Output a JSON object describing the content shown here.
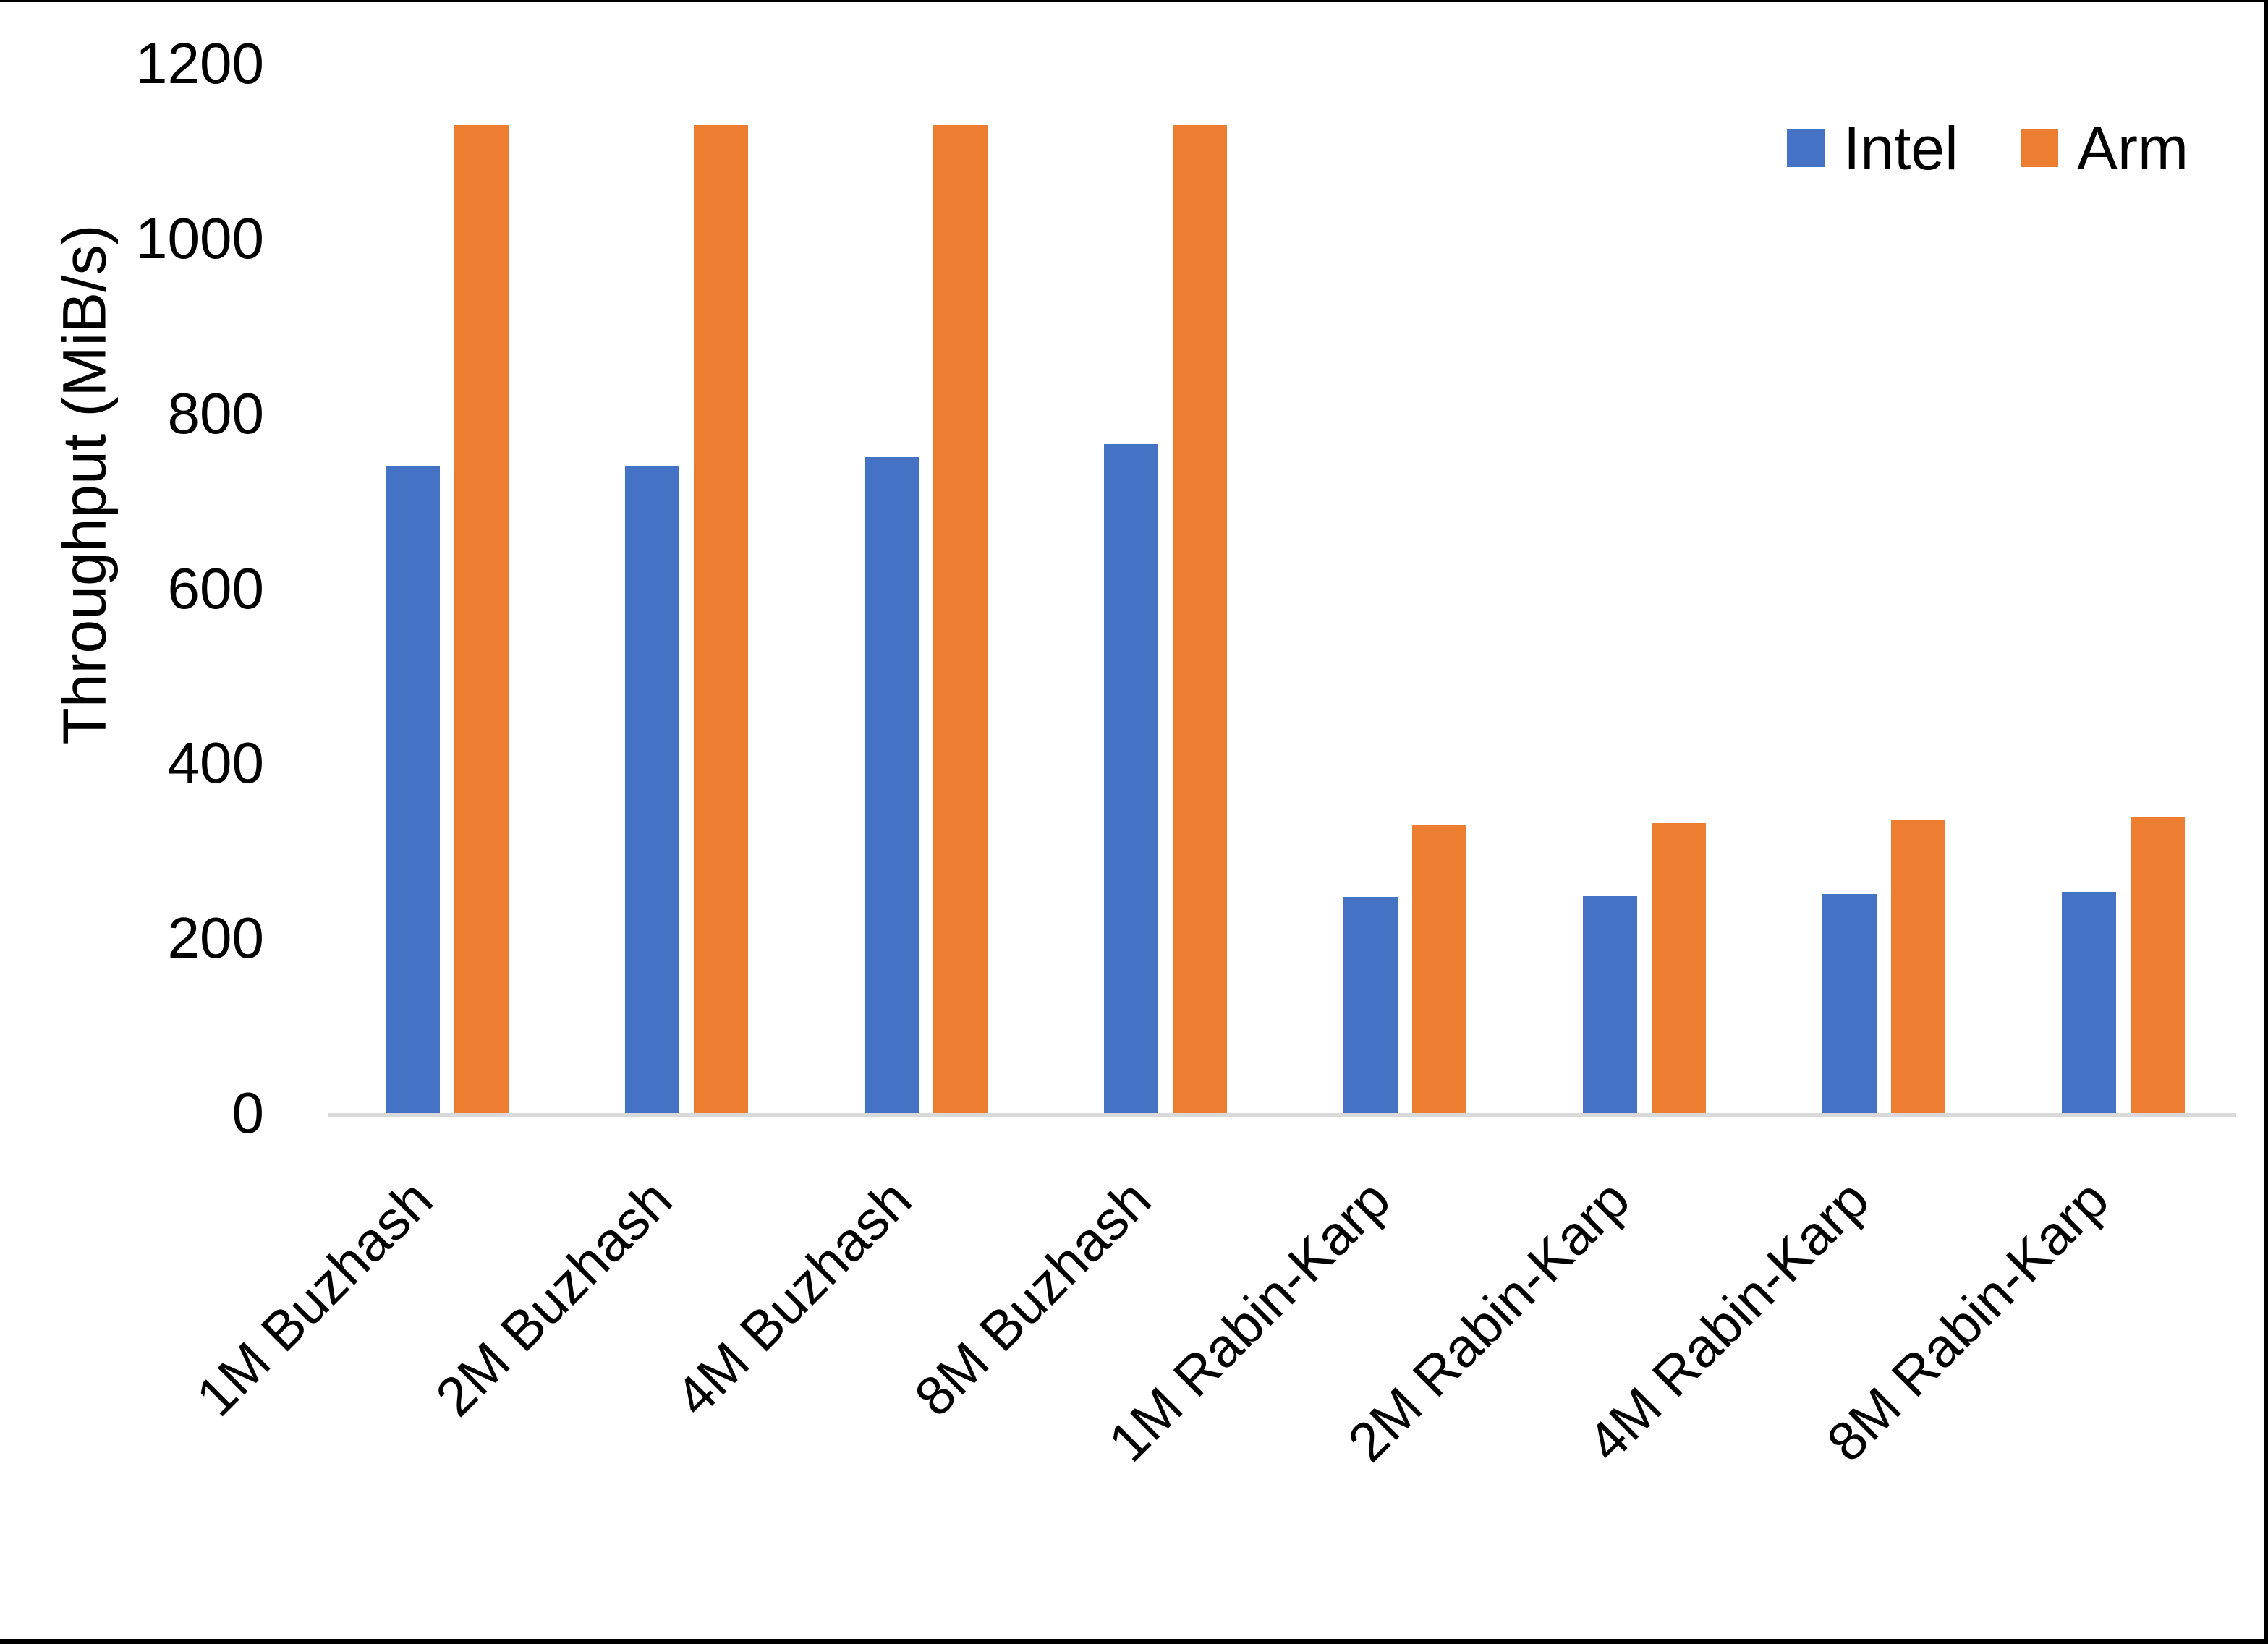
{
  "chart_data": {
    "type": "bar",
    "title": "",
    "xlabel": "",
    "ylabel": "Throughput (MiB/s)",
    "ylim": [
      0,
      1200
    ],
    "ytick_values": [
      0,
      200,
      400,
      600,
      800,
      1000,
      1200
    ],
    "grid": false,
    "legend_position": "top-right",
    "axis_line_color": "#D9D9D9",
    "text_color": "#000000",
    "background_color": "#FFFFFF",
    "categories": [
      "1M Buzhash",
      "2M Buzhash",
      "4M Buzhash",
      "8M Buzhash",
      "1M Rabin-Karp",
      "2M Rabin-Karp",
      "4M Rabin-Karp",
      "8M Rabin-Karp"
    ],
    "series": [
      {
        "name": "Intel",
        "color": "#4472C4",
        "values": [
          740,
          740,
          750,
          765,
          247,
          248,
          251,
          253
        ]
      },
      {
        "name": "Arm",
        "color": "#ED7D31",
        "values": [
          1130,
          1130,
          1130,
          1130,
          329,
          332,
          335,
          338
        ]
      }
    ]
  },
  "legend": {
    "items": [
      {
        "label": "Intel",
        "color": "#4472C4"
      },
      {
        "label": "Arm",
        "color": "#ED7D31"
      }
    ]
  }
}
